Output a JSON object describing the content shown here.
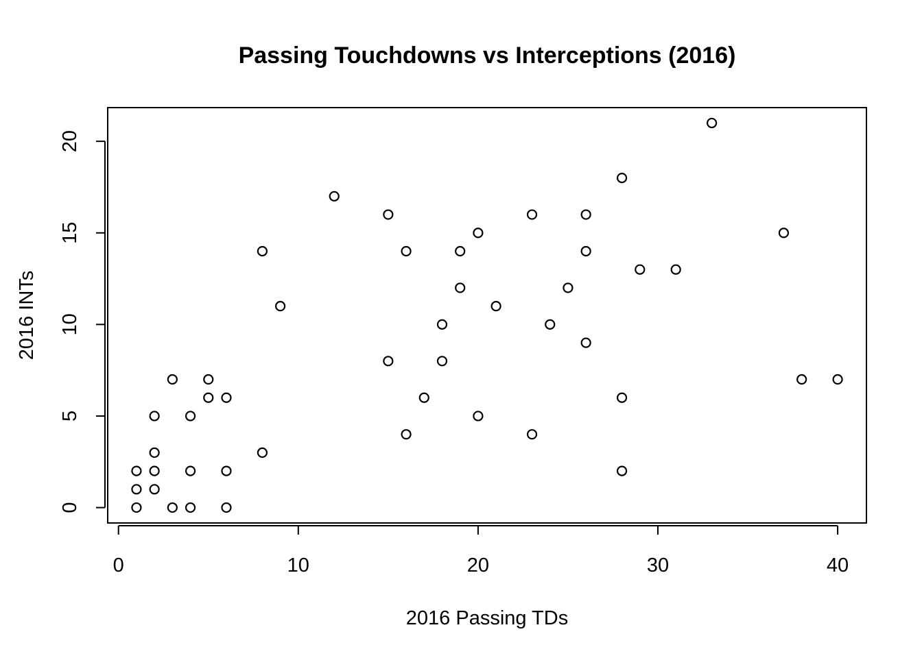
{
  "chart_data": {
    "type": "scatter",
    "title": "Passing Touchdowns vs Interceptions (2016)",
    "xlabel": "2016 Passing TDs",
    "ylabel": "2016 INTs",
    "xlim": [
      -0.6,
      41.6
    ],
    "ylim": [
      -0.84,
      21.84
    ],
    "x_ticks": [
      0,
      10,
      20,
      30,
      40
    ],
    "y_ticks": [
      0,
      5,
      10,
      15,
      20
    ],
    "grid": false,
    "legend": "none",
    "marker": "open-circle",
    "points": [
      {
        "x": 1,
        "y": 0
      },
      {
        "x": 1,
        "y": 1
      },
      {
        "x": 1,
        "y": 2
      },
      {
        "x": 2,
        "y": 1
      },
      {
        "x": 2,
        "y": 2
      },
      {
        "x": 2,
        "y": 3
      },
      {
        "x": 2,
        "y": 5
      },
      {
        "x": 3,
        "y": 0
      },
      {
        "x": 3,
        "y": 7
      },
      {
        "x": 4,
        "y": 0
      },
      {
        "x": 4,
        "y": 2
      },
      {
        "x": 4,
        "y": 5
      },
      {
        "x": 5,
        "y": 6
      },
      {
        "x": 5,
        "y": 7
      },
      {
        "x": 6,
        "y": 0
      },
      {
        "x": 6,
        "y": 2
      },
      {
        "x": 6,
        "y": 6
      },
      {
        "x": 8,
        "y": 3
      },
      {
        "x": 8,
        "y": 14
      },
      {
        "x": 9,
        "y": 11
      },
      {
        "x": 12,
        "y": 17
      },
      {
        "x": 15,
        "y": 8
      },
      {
        "x": 15,
        "y": 16
      },
      {
        "x": 16,
        "y": 4
      },
      {
        "x": 16,
        "y": 14
      },
      {
        "x": 17,
        "y": 6
      },
      {
        "x": 18,
        "y": 8
      },
      {
        "x": 18,
        "y": 10
      },
      {
        "x": 19,
        "y": 12
      },
      {
        "x": 19,
        "y": 14
      },
      {
        "x": 20,
        "y": 5
      },
      {
        "x": 20,
        "y": 15
      },
      {
        "x": 21,
        "y": 11
      },
      {
        "x": 23,
        "y": 4
      },
      {
        "x": 23,
        "y": 16
      },
      {
        "x": 24,
        "y": 10
      },
      {
        "x": 25,
        "y": 12
      },
      {
        "x": 26,
        "y": 9
      },
      {
        "x": 26,
        "y": 14
      },
      {
        "x": 26,
        "y": 16
      },
      {
        "x": 28,
        "y": 2
      },
      {
        "x": 28,
        "y": 6
      },
      {
        "x": 28,
        "y": 18
      },
      {
        "x": 29,
        "y": 13
      },
      {
        "x": 31,
        "y": 13
      },
      {
        "x": 33,
        "y": 21
      },
      {
        "x": 37,
        "y": 15
      },
      {
        "x": 38,
        "y": 7
      },
      {
        "x": 40,
        "y": 7
      }
    ]
  }
}
